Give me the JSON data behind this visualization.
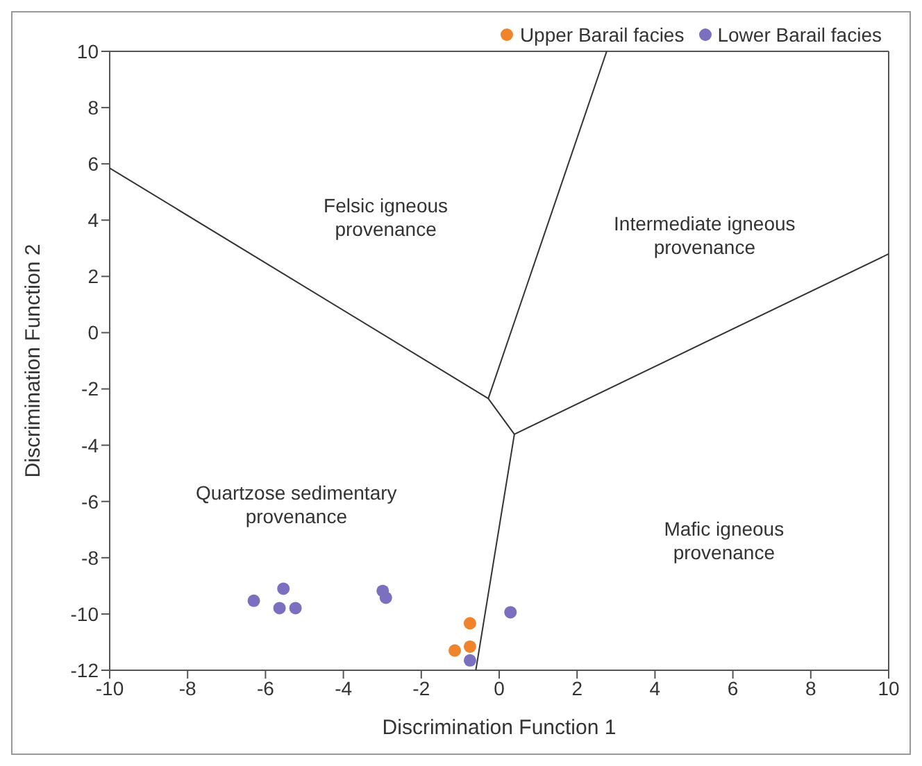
{
  "chart_data": {
    "type": "scatter",
    "xlabel": "Discrimination Function 1",
    "ylabel": "Discrimination Function 2",
    "xlim": [
      -10,
      10
    ],
    "xticks": [
      -10,
      -8,
      -6,
      -4,
      -2,
      0,
      2,
      4,
      6,
      8,
      10
    ],
    "ylim": [
      -12,
      10
    ],
    "yticks": [
      -12,
      -10,
      -8,
      -6,
      -4,
      -2,
      0,
      2,
      4,
      6,
      8,
      10
    ],
    "legend": "top right",
    "marker": "circle",
    "series": [
      {
        "name": "Upper Barail facies",
        "color": "#f0842c",
        "x": [
          -0.75,
          -0.75,
          -1.14
        ],
        "values": [
          -10.33,
          -11.16,
          -11.3
        ]
      },
      {
        "name": "Lower Barail facies",
        "color": "#7b6fbf",
        "x": [
          -6.3,
          -5.54,
          -5.64,
          -5.23,
          -2.99,
          -2.91,
          0.29,
          -0.75
        ],
        "values": [
          -9.53,
          -9.1,
          -9.79,
          -9.79,
          -9.18,
          -9.42,
          -9.94,
          -11.65
        ]
      },
      {
        "type": "line",
        "marker": "none",
        "color": "#333333",
        "x": [
          -10,
          -0.28,
          0.39,
          10
        ],
        "values": [
          5.85,
          -2.34,
          -3.61,
          2.8
        ]
      },
      {
        "type": "line",
        "marker": "none",
        "color": "#333333",
        "x": [
          2.76,
          -0.28
        ],
        "values": [
          10,
          -2.34
        ]
      },
      {
        "type": "line",
        "marker": "none",
        "color": "#333333",
        "x": [
          0.39,
          -0.6
        ],
        "values": [
          -3.61,
          -12
        ]
      }
    ],
    "annotations": [
      "Felsic igneous\nprovenance",
      "Intermediate igneous\nprovenance",
      "Quartzose sedimentary\nprovenance",
      "Mafic igneous\nprovenance"
    ]
  }
}
